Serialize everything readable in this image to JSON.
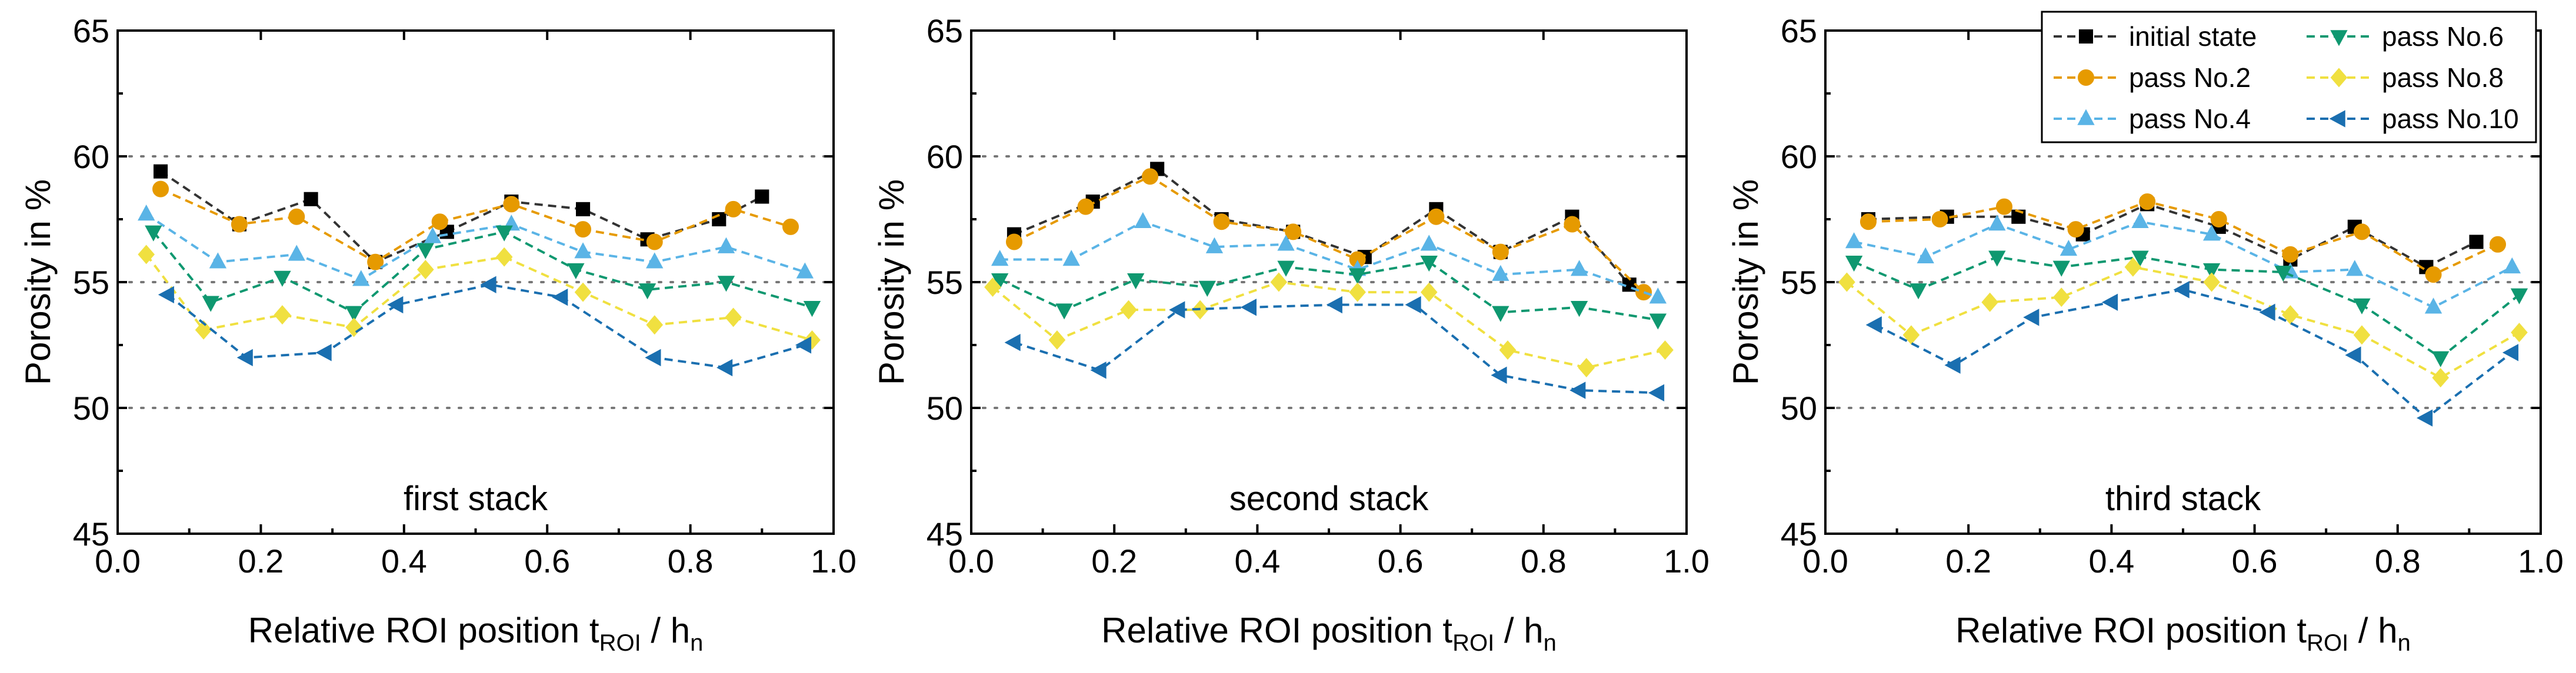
{
  "chart_data": [
    {
      "type": "line",
      "annotation": "first stack",
      "xlabel": "Relative ROI position t",
      "xlabel_sub1": "ROI",
      "xlabel_mid": " / h",
      "xlabel_sub2": "n",
      "ylabel": "Porosity in %",
      "xlim": [
        0.0,
        1.0
      ],
      "ylim": [
        45,
        65
      ],
      "xticks": [
        0.0,
        0.2,
        0.4,
        0.6,
        0.8,
        1.0
      ],
      "xtick_labels": [
        "0.0",
        "0.2",
        "0.4",
        "0.6",
        "0.8",
        "1.0"
      ],
      "yticks": [
        45,
        50,
        55,
        60,
        65
      ],
      "ytick_labels": [
        "45",
        "50",
        "55",
        "60",
        "65"
      ],
      "reference_lines": [
        50,
        55,
        60
      ],
      "series": [
        {
          "name": "initial state",
          "x": [
            0.06,
            0.17,
            0.27,
            0.36,
            0.46,
            0.55,
            0.65,
            0.74,
            0.84,
            0.9
          ],
          "y": [
            59.4,
            57.3,
            58.3,
            55.8,
            57.0,
            58.2,
            57.9,
            56.7,
            57.5,
            58.4
          ]
        },
        {
          "name": "pass No.2",
          "x": [
            0.06,
            0.17,
            0.25,
            0.36,
            0.45,
            0.55,
            0.65,
            0.75,
            0.86,
            0.94
          ],
          "y": [
            58.7,
            57.3,
            57.6,
            55.8,
            57.4,
            58.1,
            57.1,
            56.6,
            57.9,
            57.2
          ]
        },
        {
          "name": "pass No.4",
          "x": [
            0.04,
            0.14,
            0.25,
            0.34,
            0.44,
            0.55,
            0.65,
            0.75,
            0.85,
            0.96
          ],
          "y": [
            57.7,
            55.8,
            56.1,
            55.1,
            56.8,
            57.3,
            56.2,
            55.8,
            56.4,
            55.4
          ]
        },
        {
          "name": "pass No.6",
          "x": [
            0.05,
            0.13,
            0.23,
            0.33,
            0.43,
            0.54,
            0.64,
            0.74,
            0.85,
            0.97
          ],
          "y": [
            57.0,
            54.2,
            55.2,
            53.8,
            56.3,
            57.0,
            55.5,
            54.7,
            55.0,
            54.0
          ]
        },
        {
          "name": "pass No.8",
          "x": [
            0.04,
            0.12,
            0.23,
            0.33,
            0.43,
            0.54,
            0.65,
            0.75,
            0.86,
            0.97
          ],
          "y": [
            56.1,
            53.1,
            53.7,
            53.2,
            55.5,
            56.0,
            54.6,
            53.3,
            53.6,
            52.7
          ]
        },
        {
          "name": "pass No.10",
          "x": [
            0.07,
            0.18,
            0.29,
            0.39,
            0.52,
            0.62,
            0.75,
            0.85,
            0.96
          ],
          "y": [
            54.5,
            52.0,
            52.2,
            54.1,
            54.9,
            54.4,
            52.0,
            51.6,
            52.5
          ]
        }
      ]
    },
    {
      "type": "line",
      "annotation": "second stack",
      "xlabel": "Relative ROI position t",
      "xlabel_sub1": "ROI",
      "xlabel_mid": " / h",
      "xlabel_sub2": "n",
      "ylabel": "Porosity in %",
      "xlim": [
        0.0,
        1.0
      ],
      "ylim": [
        45,
        65
      ],
      "xticks": [
        0.0,
        0.2,
        0.4,
        0.6,
        0.8,
        1.0
      ],
      "xtick_labels": [
        "0.0",
        "0.2",
        "0.4",
        "0.6",
        "0.8",
        "1.0"
      ],
      "yticks": [
        45,
        50,
        55,
        60,
        65
      ],
      "ytick_labels": [
        "45",
        "50",
        "55",
        "60",
        "65"
      ],
      "reference_lines": [
        50,
        55,
        60
      ],
      "series": [
        {
          "name": "initial state",
          "x": [
            0.06,
            0.17,
            0.26,
            0.35,
            0.45,
            0.55,
            0.65,
            0.74,
            0.84,
            0.92
          ],
          "y": [
            56.9,
            58.2,
            59.5,
            57.5,
            57.0,
            56.0,
            57.9,
            56.2,
            57.6,
            54.9
          ]
        },
        {
          "name": "pass No.2",
          "x": [
            0.06,
            0.16,
            0.25,
            0.35,
            0.45,
            0.54,
            0.65,
            0.74,
            0.84,
            0.94
          ],
          "y": [
            56.6,
            58.0,
            59.2,
            57.4,
            57.0,
            55.9,
            57.6,
            56.2,
            57.3,
            54.6
          ]
        },
        {
          "name": "pass No.4",
          "x": [
            0.04,
            0.14,
            0.24,
            0.34,
            0.44,
            0.54,
            0.64,
            0.74,
            0.85,
            0.96
          ],
          "y": [
            55.9,
            55.9,
            57.4,
            56.4,
            56.5,
            55.5,
            56.5,
            55.3,
            55.5,
            54.4
          ]
        },
        {
          "name": "pass No.6",
          "x": [
            0.04,
            0.13,
            0.23,
            0.33,
            0.44,
            0.54,
            0.64,
            0.74,
            0.85,
            0.96
          ],
          "y": [
            55.1,
            53.9,
            55.1,
            54.8,
            55.6,
            55.3,
            55.8,
            53.8,
            54.0,
            53.5
          ]
        },
        {
          "name": "pass No.8",
          "x": [
            0.03,
            0.12,
            0.22,
            0.32,
            0.43,
            0.54,
            0.64,
            0.75,
            0.86,
            0.97
          ],
          "y": [
            54.8,
            52.7,
            53.9,
            53.9,
            55.0,
            54.6,
            54.6,
            52.3,
            51.6,
            52.3
          ]
        },
        {
          "name": "pass No.10",
          "x": [
            0.06,
            0.18,
            0.29,
            0.39,
            0.51,
            0.62,
            0.74,
            0.85,
            0.96
          ],
          "y": [
            52.6,
            51.5,
            53.9,
            54.0,
            54.1,
            54.1,
            51.3,
            50.7,
            50.6
          ]
        }
      ]
    },
    {
      "type": "line",
      "annotation": "third stack",
      "xlabel": "Relative ROI position t",
      "xlabel_sub1": "ROI",
      "xlabel_mid": " / h",
      "xlabel_sub2": "n",
      "ylabel": "Porosity in %",
      "xlim": [
        0.0,
        1.0
      ],
      "ylim": [
        45,
        65
      ],
      "xticks": [
        0.0,
        0.2,
        0.4,
        0.6,
        0.8,
        1.0
      ],
      "xtick_labels": [
        "0.0",
        "0.2",
        "0.4",
        "0.6",
        "0.8",
        "1.0"
      ],
      "yticks": [
        45,
        50,
        55,
        60,
        65
      ],
      "ytick_labels": [
        "45",
        "50",
        "55",
        "60",
        "65"
      ],
      "reference_lines": [
        50,
        55,
        60
      ],
      "series": [
        {
          "name": "initial state",
          "x": [
            0.06,
            0.17,
            0.27,
            0.36,
            0.45,
            0.55,
            0.65,
            0.74,
            0.84,
            0.91
          ],
          "y": [
            57.5,
            57.6,
            57.6,
            56.9,
            58.1,
            57.2,
            55.9,
            57.2,
            55.6,
            56.6
          ]
        },
        {
          "name": "pass No.2",
          "x": [
            0.06,
            0.16,
            0.25,
            0.35,
            0.45,
            0.55,
            0.65,
            0.75,
            0.85,
            0.94
          ],
          "y": [
            57.4,
            57.5,
            58.0,
            57.1,
            58.2,
            57.5,
            56.1,
            57.0,
            55.3,
            56.5
          ]
        },
        {
          "name": "pass No.4",
          "x": [
            0.04,
            0.14,
            0.24,
            0.34,
            0.44,
            0.54,
            0.65,
            0.74,
            0.85,
            0.96
          ],
          "y": [
            56.6,
            56.0,
            57.3,
            56.3,
            57.4,
            56.9,
            55.4,
            55.5,
            54.0,
            55.6
          ]
        },
        {
          "name": "pass No.6",
          "x": [
            0.04,
            0.13,
            0.24,
            0.33,
            0.44,
            0.54,
            0.64,
            0.75,
            0.86,
            0.97
          ],
          "y": [
            55.8,
            54.7,
            56.0,
            55.6,
            56.0,
            55.5,
            55.4,
            54.1,
            52.0,
            54.5
          ]
        },
        {
          "name": "pass No.8",
          "x": [
            0.03,
            0.12,
            0.23,
            0.33,
            0.43,
            0.54,
            0.65,
            0.75,
            0.86,
            0.97
          ],
          "y": [
            55.0,
            52.9,
            54.2,
            54.4,
            55.6,
            55.0,
            53.7,
            52.9,
            51.2,
            53.0
          ]
        },
        {
          "name": "pass No.10",
          "x": [
            0.07,
            0.18,
            0.29,
            0.4,
            0.5,
            0.62,
            0.74,
            0.84,
            0.96
          ],
          "y": [
            53.3,
            51.7,
            53.6,
            54.2,
            54.7,
            53.8,
            52.1,
            49.6,
            52.2
          ]
        }
      ]
    }
  ],
  "legend": {
    "placement": "top-right of third panel",
    "entries": [
      {
        "label": "initial state",
        "color": "#000000",
        "marker": "square"
      },
      {
        "label": "pass No.6",
        "color": "#0f9870",
        "marker": "triangle-down"
      },
      {
        "label": "pass No.2",
        "color": "#e69a00",
        "marker": "circle"
      },
      {
        "label": "pass No.8",
        "color": "#f0e040",
        "marker": "diamond"
      },
      {
        "label": "pass No.4",
        "color": "#5ab4e6",
        "marker": "triangle-up"
      },
      {
        "label": "pass No.10",
        "color": "#1a6fb0",
        "marker": "triangle-left"
      }
    ]
  },
  "series_styles": {
    "initial state": {
      "line": "#333333",
      "marker": "square",
      "fill": "#000000"
    },
    "pass No.2": {
      "line": "#e69a00",
      "marker": "circle",
      "fill": "#e69a00"
    },
    "pass No.4": {
      "line": "#5ab4e6",
      "marker": "triangle-up",
      "fill": "#5ab4e6"
    },
    "pass No.6": {
      "line": "#0f9870",
      "marker": "triangle-down",
      "fill": "#0f9870"
    },
    "pass No.8": {
      "line": "#f0e040",
      "marker": "diamond",
      "fill": "#f0e040"
    },
    "pass No.10": {
      "line": "#1a6fb0",
      "marker": "triangle-left",
      "fill": "#1a6fb0"
    }
  }
}
